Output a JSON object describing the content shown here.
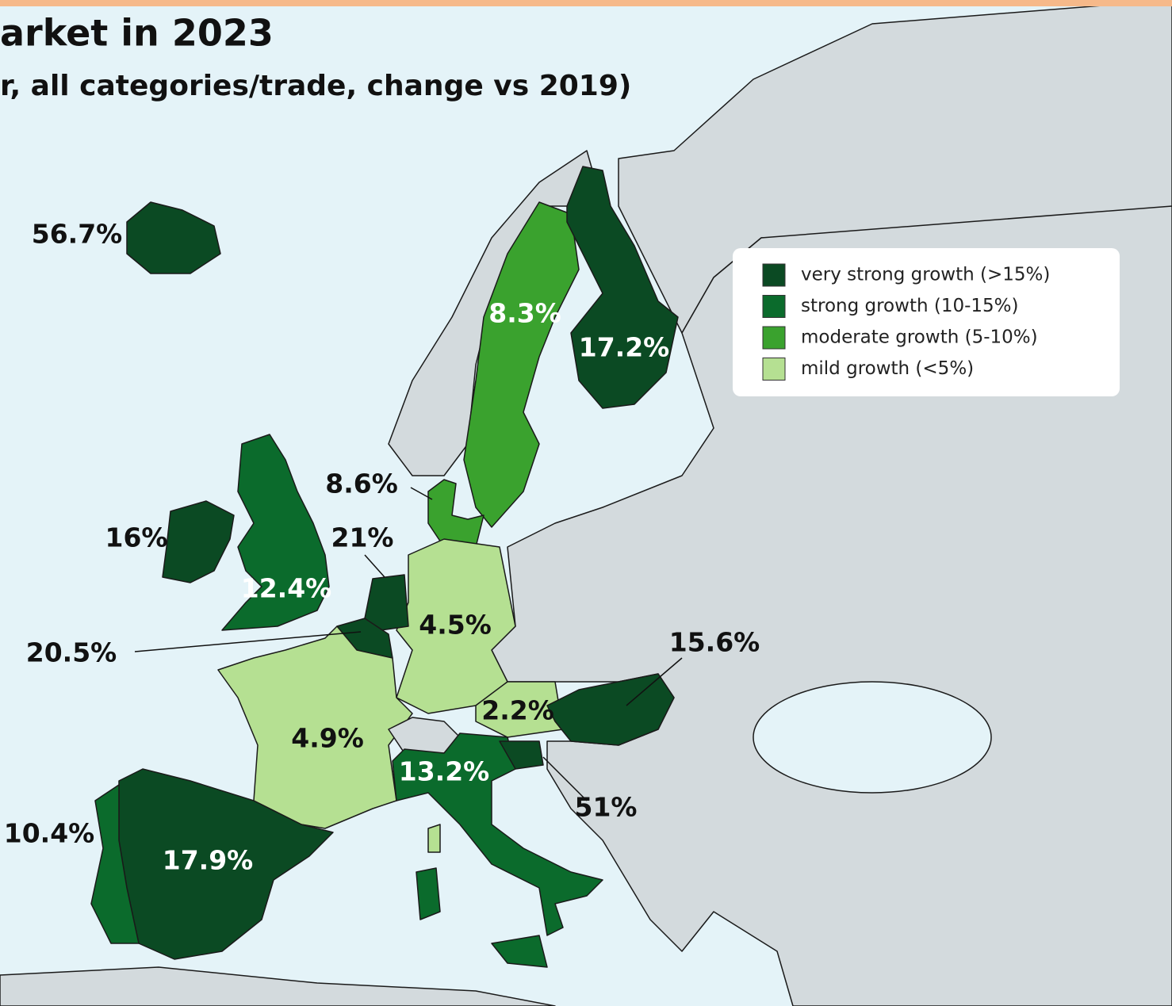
{
  "header": {
    "title": "arket in 2023",
    "subtitle": "r, all categories/trade, change vs 2019)"
  },
  "legend": [
    {
      "label": "very strong growth (>15%)",
      "color": "#0b4a23"
    },
    {
      "label": "strong growth (10-15%)",
      "color": "#0b6b2c"
    },
    {
      "label": "moderate growth (5-10%)",
      "color": "#3aa22e"
    },
    {
      "label": "mild growth (<5%)",
      "color": "#b5e092"
    }
  ],
  "labels": [
    "56.7%",
    "8.3%",
    "17.2%",
    "8.6%",
    "16%",
    "21%",
    "12.4%",
    "4.5%",
    "20.5%",
    "15.6%",
    "2.2%",
    "4.9%",
    "13.2%",
    "51%",
    "10.4%",
    "17.9%"
  ]
}
